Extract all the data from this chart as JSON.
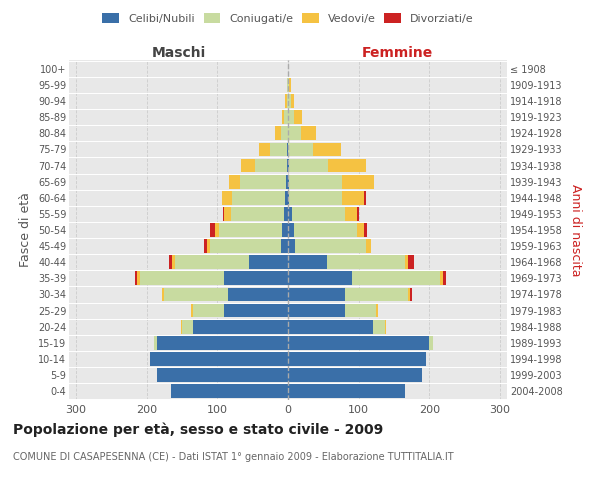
{
  "age_groups": [
    "0-4",
    "5-9",
    "10-14",
    "15-19",
    "20-24",
    "25-29",
    "30-34",
    "35-39",
    "40-44",
    "45-49",
    "50-54",
    "55-59",
    "60-64",
    "65-69",
    "70-74",
    "75-79",
    "80-84",
    "85-89",
    "90-94",
    "95-99",
    "100+"
  ],
  "birth_years": [
    "2004-2008",
    "1999-2003",
    "1994-1998",
    "1989-1993",
    "1984-1988",
    "1979-1983",
    "1974-1978",
    "1969-1973",
    "1964-1968",
    "1959-1963",
    "1954-1958",
    "1949-1953",
    "1944-1948",
    "1939-1943",
    "1934-1938",
    "1929-1933",
    "1924-1928",
    "1919-1923",
    "1914-1918",
    "1909-1913",
    "≤ 1908"
  ],
  "male": {
    "celibi": [
      165,
      185,
      195,
      185,
      135,
      90,
      85,
      90,
      55,
      10,
      8,
      5,
      4,
      3,
      2,
      1,
      0,
      0,
      0,
      0,
      0
    ],
    "coniugati": [
      0,
      0,
      0,
      4,
      15,
      45,
      90,
      120,
      105,
      100,
      90,
      75,
      75,
      65,
      45,
      25,
      10,
      5,
      2,
      1,
      0
    ],
    "vedovi": [
      0,
      0,
      0,
      0,
      2,
      2,
      3,
      4,
      4,
      4,
      5,
      10,
      15,
      15,
      20,
      15,
      8,
      4,
      2,
      1,
      0
    ],
    "divorziati": [
      0,
      0,
      0,
      0,
      0,
      0,
      1,
      2,
      4,
      5,
      8,
      2,
      0,
      0,
      0,
      0,
      0,
      0,
      0,
      0,
      0
    ]
  },
  "female": {
    "nubili": [
      165,
      190,
      195,
      200,
      120,
      80,
      80,
      90,
      55,
      10,
      8,
      5,
      2,
      2,
      1,
      0,
      0,
      0,
      0,
      0,
      0
    ],
    "coniugate": [
      0,
      0,
      0,
      5,
      18,
      45,
      90,
      125,
      110,
      100,
      90,
      75,
      75,
      75,
      55,
      35,
      18,
      8,
      4,
      2,
      0
    ],
    "vedove": [
      0,
      0,
      0,
      0,
      1,
      2,
      3,
      4,
      5,
      8,
      10,
      18,
      30,
      45,
      55,
      40,
      22,
      12,
      5,
      2,
      0
    ],
    "divorziate": [
      0,
      0,
      0,
      0,
      0,
      1,
      2,
      5,
      8,
      0,
      4,
      2,
      3,
      0,
      0,
      0,
      0,
      0,
      0,
      0,
      0
    ]
  },
  "colors": {
    "celibi_nubili": "#3a6fa8",
    "coniugati": "#c8dba0",
    "vedovi": "#f5c242",
    "divorziati": "#cc2222"
  },
  "xlim": 310,
  "title": "Popolazione per età, sesso e stato civile - 2009",
  "subtitle": "COMUNE DI CASAPESENNA (CE) - Dati ISTAT 1° gennaio 2009 - Elaborazione TUTTITALIA.IT",
  "ylabel_left": "Fasce di età",
  "ylabel_right": "Anni di nascita",
  "xlabel_left": "Maschi",
  "xlabel_right": "Femmine",
  "bg_color": "#ffffff",
  "plot_bg": "#e8e8e8",
  "grid_color": "#cccccc"
}
